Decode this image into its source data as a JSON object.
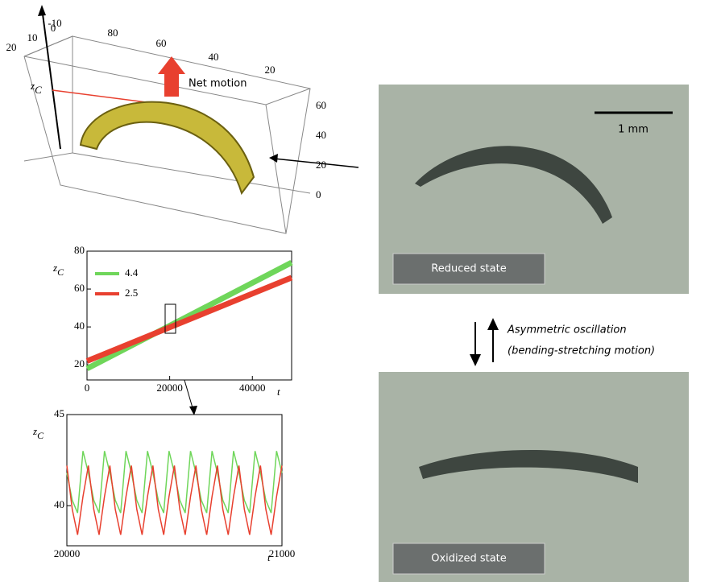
{
  "panel3d": {
    "axis_label": "z",
    "axis_label_sub": "C",
    "motion_label": "Net motion",
    "top_ticks": [
      "-10",
      "80",
      "60",
      "40",
      "20"
    ],
    "left_ticks": [
      "20",
      "10",
      "0"
    ],
    "right_ticks": [
      "60",
      "40",
      "20",
      "0"
    ]
  },
  "photos": [
    {
      "state": "Reduced state",
      "scale": "1 mm"
    },
    {
      "state": "Oxidized state"
    }
  ],
  "oscillation": {
    "line1": "Asymmetric oscillation",
    "line2": "(bending-stretching motion)"
  },
  "chart_data": [
    {
      "type": "line",
      "ylabel": "z",
      "ylabel_sub": "C",
      "xlabel": "t",
      "x": [
        0,
        49500
      ],
      "xlim": [
        0,
        49500
      ],
      "xticks": [
        0,
        20000,
        40000
      ],
      "ylim": [
        12,
        80
      ],
      "yticks": [
        20,
        40,
        60,
        80
      ],
      "series": [
        {
          "name": "4.4",
          "color": "#6fd65a",
          "values": [
            18,
            74
          ]
        },
        {
          "name": "2.5",
          "color": "#e8402f",
          "values": [
            22,
            66
          ]
        }
      ]
    },
    {
      "type": "line",
      "ylabel": "z",
      "ylabel_sub": "C",
      "xlabel": "t",
      "x": [
        20000,
        20025,
        20050,
        20075,
        20100,
        20125,
        20150,
        20175,
        20200,
        20225,
        20250,
        20275,
        20300,
        20325,
        20350,
        20375,
        20400,
        20425,
        20450,
        20475,
        20500,
        20525,
        20550,
        20575,
        20600,
        20625,
        20650,
        20675,
        20700,
        20725,
        20750,
        20775,
        20800,
        20825,
        20850,
        20875,
        20900,
        20925,
        20950,
        20975,
        21000
      ],
      "xlim": [
        20000,
        21000
      ],
      "xticks": [
        20000,
        21000
      ],
      "ylim": [
        37.8,
        45
      ],
      "yticks": [
        40,
        45
      ],
      "series": [
        {
          "name": "4.4",
          "color": "#6fd65a",
          "values": [
            41.8,
            40.3,
            39.6,
            43.0,
            41.8,
            40.3,
            39.6,
            43.0,
            41.8,
            40.3,
            39.6,
            43.0,
            41.8,
            40.3,
            39.6,
            43.0,
            41.8,
            40.3,
            39.6,
            43.0,
            41.8,
            40.3,
            39.6,
            43.0,
            41.8,
            40.3,
            39.6,
            43.0,
            41.8,
            40.3,
            39.6,
            43.0,
            41.8,
            40.3,
            39.6,
            43.0,
            41.8,
            40.3,
            39.6,
            43.0,
            41.8
          ]
        },
        {
          "name": "2.5",
          "color": "#e8402f",
          "values": [
            42.2,
            39.8,
            38.4,
            40.5,
            42.2,
            39.8,
            38.4,
            40.5,
            42.2,
            39.8,
            38.4,
            40.5,
            42.2,
            39.8,
            38.4,
            40.5,
            42.2,
            39.8,
            38.4,
            40.5,
            42.2,
            39.8,
            38.4,
            40.5,
            42.2,
            39.8,
            38.4,
            40.5,
            42.2,
            39.8,
            38.4,
            40.5,
            42.2,
            39.8,
            38.4,
            40.5,
            42.2,
            39.8,
            38.4,
            40.5,
            42.2
          ]
        }
      ]
    }
  ]
}
